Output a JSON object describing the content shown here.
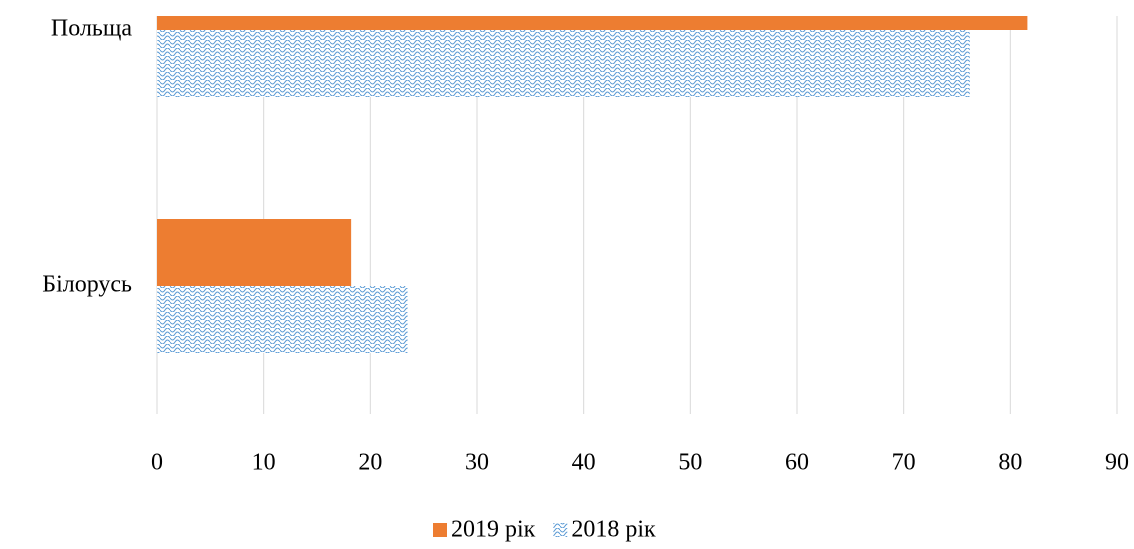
{
  "chart_data": {
    "type": "barh",
    "categories": [
      "Польща",
      "Білорусь"
    ],
    "series": [
      {
        "name": "2019 рік",
        "color": "#ed7d31",
        "values": [
          81.6,
          18.2
        ]
      },
      {
        "name": "2018 рік",
        "color": "#5b9bd5",
        "pattern": "wave",
        "values": [
          76.2,
          23.5
        ]
      }
    ],
    "xlim": [
      0,
      90
    ],
    "xticks": [
      0,
      10,
      20,
      30,
      40,
      50,
      60,
      70,
      80,
      90
    ],
    "grid": true,
    "legend": "bottom"
  }
}
